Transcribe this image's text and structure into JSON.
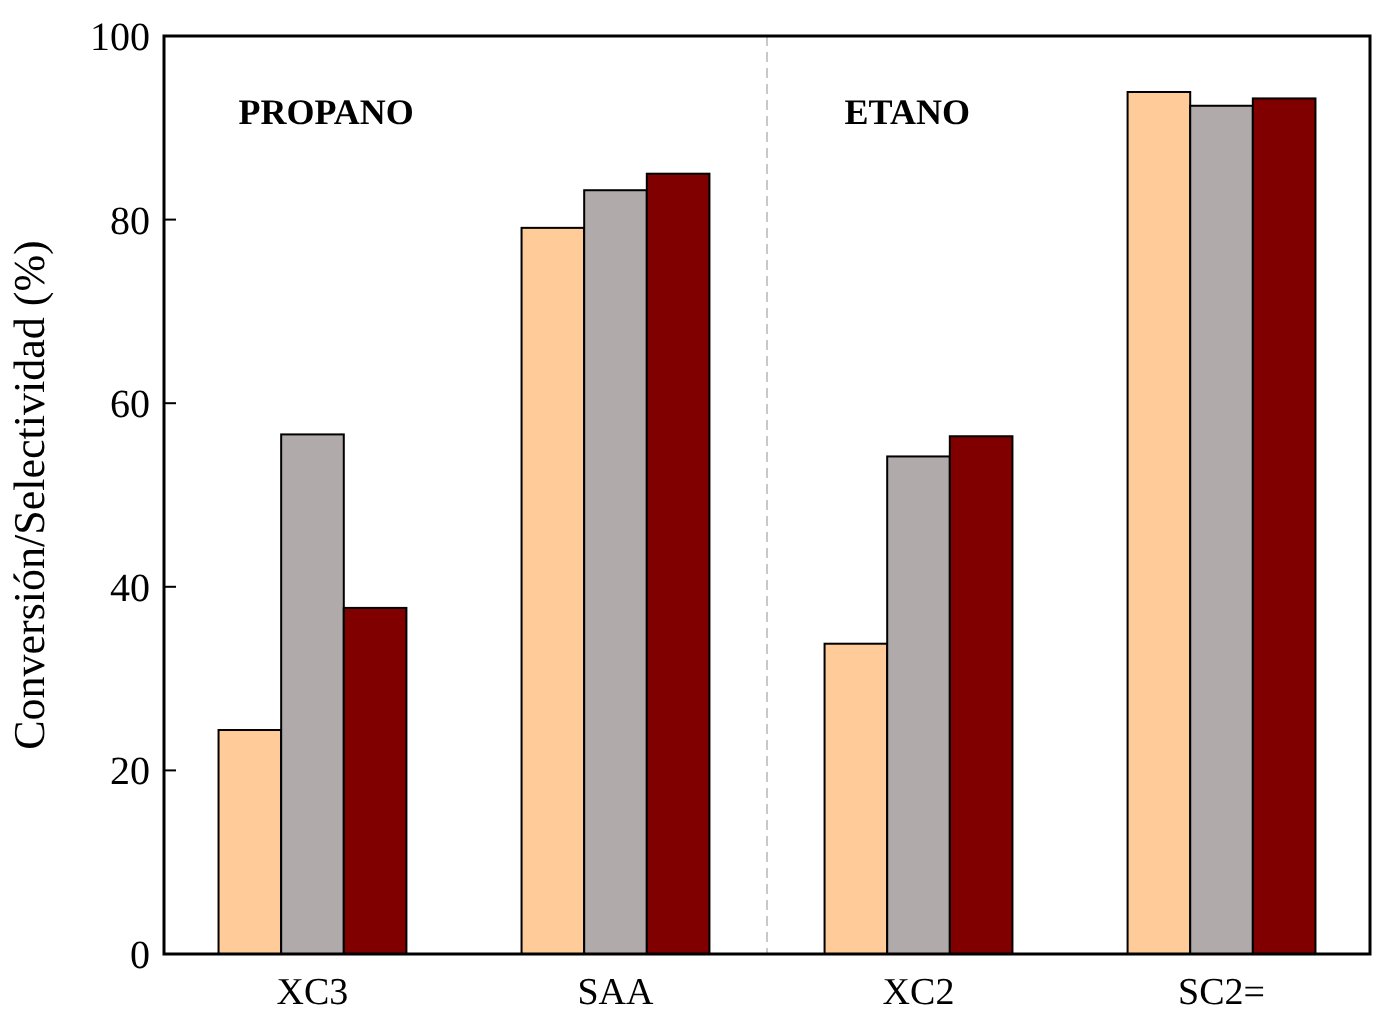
{
  "chart_data": {
    "type": "bar",
    "ylabel": "Conversión/Selectividad (%)",
    "categories": [
      "XC3",
      "SAA",
      "XC2",
      "SC2="
    ],
    "series": [
      {
        "color": "#ffcc99",
        "values": [
          24.4,
          79.1,
          33.8,
          93.9
        ]
      },
      {
        "color": "#b0aaaa",
        "values": [
          56.6,
          83.2,
          54.2,
          92.4
        ]
      },
      {
        "color": "#800000",
        "values": [
          37.7,
          85.0,
          56.4,
          93.2
        ]
      }
    ],
    "ylim": [
      0,
      100
    ],
    "yticks": [
      0,
      20,
      40,
      60,
      80,
      100
    ],
    "grid": false,
    "annotations": [
      "PROPANO",
      "ETANO"
    ]
  }
}
